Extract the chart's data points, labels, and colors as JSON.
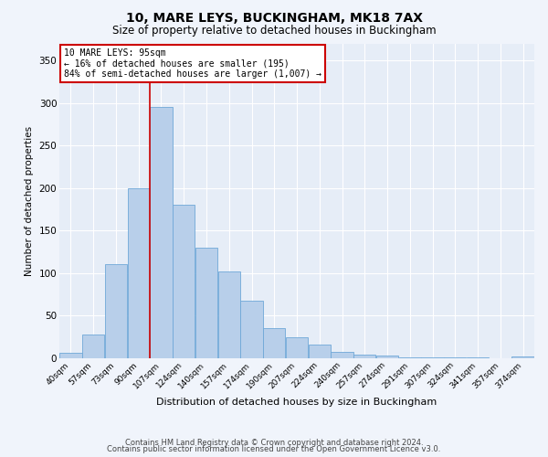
{
  "title": "10, MARE LEYS, BUCKINGHAM, MK18 7AX",
  "subtitle": "Size of property relative to detached houses in Buckingham",
  "xlabel": "Distribution of detached houses by size in Buckingham",
  "ylabel": "Number of detached properties",
  "categories": [
    "40sqm",
    "57sqm",
    "73sqm",
    "90sqm",
    "107sqm",
    "124sqm",
    "140sqm",
    "157sqm",
    "174sqm",
    "190sqm",
    "207sqm",
    "224sqm",
    "240sqm",
    "257sqm",
    "274sqm",
    "291sqm",
    "307sqm",
    "324sqm",
    "341sqm",
    "357sqm",
    "374sqm"
  ],
  "values": [
    6,
    28,
    110,
    200,
    295,
    180,
    130,
    102,
    68,
    35,
    25,
    16,
    7,
    4,
    3,
    1,
    1,
    1,
    1,
    0,
    2
  ],
  "bar_color": "#b8cfea",
  "bar_edge_color": "#6fa8d8",
  "ylim": [
    0,
    370
  ],
  "yticks": [
    0,
    50,
    100,
    150,
    200,
    250,
    300,
    350
  ],
  "annotation_text": "10 MARE LEYS: 95sqm\n← 16% of detached houses are smaller (195)\n84% of semi-detached houses are larger (1,007) →",
  "vline_color": "#cc0000",
  "footer1": "Contains HM Land Registry data © Crown copyright and database right 2024.",
  "footer2": "Contains public sector information licensed under the Open Government Licence v3.0.",
  "background_color": "#f0f4fb",
  "plot_bg_color": "#e6edf7",
  "grid_color": "#ffffff"
}
